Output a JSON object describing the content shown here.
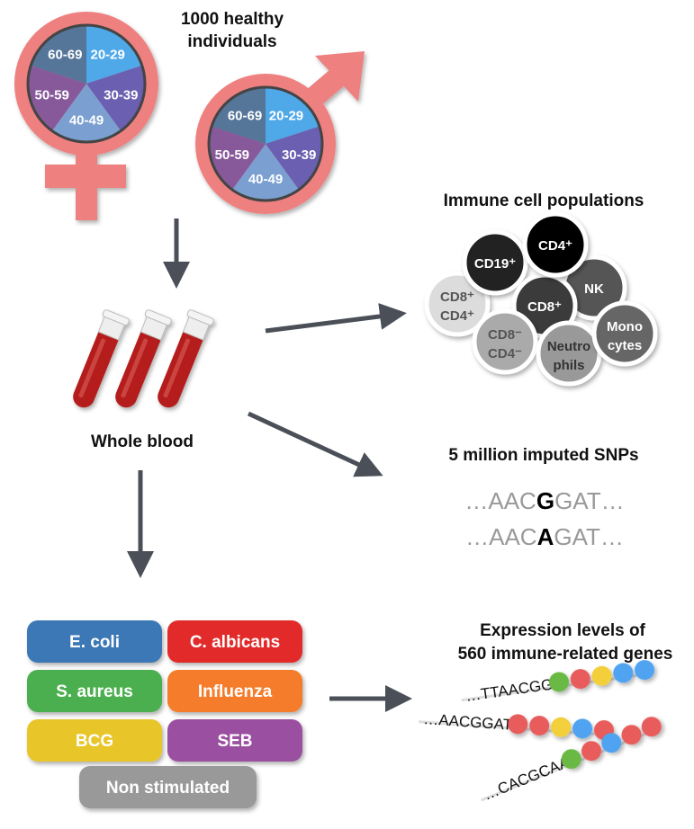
{
  "cohort": {
    "title_line1": "1000 healthy",
    "title_line2": "individuals",
    "age_groups": [
      {
        "label": "20-29",
        "color": "#4fa8e8"
      },
      {
        "label": "30-39",
        "color": "#6a5fb0"
      },
      {
        "label": "40-49",
        "color": "#7a9fd0"
      },
      {
        "label": "50-59",
        "color": "#87599a"
      },
      {
        "label": "60-69",
        "color": "#557599"
      }
    ],
    "symbol_color": "#ee8080",
    "female_icon": "female-symbol-icon",
    "male_icon": "male-symbol-icon"
  },
  "blood": {
    "label": "Whole blood",
    "icon": "test-tubes-icon",
    "color": "#b51c1c"
  },
  "immune": {
    "title": "Immune cell populations",
    "cells": [
      {
        "line1": "CD8⁺",
        "line2": "CD4⁺",
        "fill": "#dcdcdc",
        "text": "#555"
      },
      {
        "line1": "CD19⁺",
        "line2": "",
        "fill": "#222",
        "text": "#fff"
      },
      {
        "line1": "NK",
        "line2": "",
        "fill": "#555",
        "text": "#fff"
      },
      {
        "line1": "CD8⁺",
        "line2": "",
        "fill": "#3a3a3a",
        "text": "#fff"
      },
      {
        "line1": "CD4⁺",
        "line2": "",
        "fill": "#000",
        "text": "#fff"
      },
      {
        "line1": "CD8⁻",
        "line2": "CD4⁻",
        "fill": "#aaa",
        "text": "#555"
      },
      {
        "line1": "Neutro",
        "line2": "phils",
        "fill": "#999",
        "text": "#333"
      },
      {
        "line1": "Mono",
        "line2": "cytes",
        "fill": "#666",
        "text": "#fff"
      }
    ]
  },
  "snps": {
    "title": "5 million imputed SNPs",
    "sequences": [
      {
        "prefix": "…AAC",
        "variant": "G",
        "suffix": "GAT…"
      },
      {
        "prefix": "…AAC",
        "variant": "A",
        "suffix": "GAT…"
      }
    ]
  },
  "stimuli": [
    {
      "label": "E. coli",
      "color": "#3a78b5"
    },
    {
      "label": "C. albicans",
      "color": "#e22a2a"
    },
    {
      "label": "S. aureus",
      "color": "#4caf50"
    },
    {
      "label": "Influenza",
      "color": "#f47c2a"
    },
    {
      "label": "BCG",
      "color": "#e8c62a"
    },
    {
      "label": "SEB",
      "color": "#9b4fa0"
    },
    {
      "label": "Non stimulated",
      "color": "#999999"
    }
  ],
  "expression": {
    "title_line1": "Expression levels of",
    "title_line2": "560 immune-related genes",
    "genes": [
      {
        "seq": "…TTAACGG",
        "dots": [
          "#6ab945",
          "#e85c5c",
          "#f2cf3a",
          "#4fa3f0",
          "#4fa3f0"
        ]
      },
      {
        "seq": "…AACGGAT",
        "dots": [
          "#e85c5c",
          "#e85c5c",
          "#f2cf3a",
          "#4fa3f0",
          "#e85c5c"
        ]
      },
      {
        "seq": "…CACGCAA",
        "dots": [
          "#6ab945",
          "#e85c5c",
          "#4fa3f0",
          "#e85c5c",
          "#e85c5c"
        ]
      }
    ]
  },
  "arrow_color": "#4a4f58"
}
